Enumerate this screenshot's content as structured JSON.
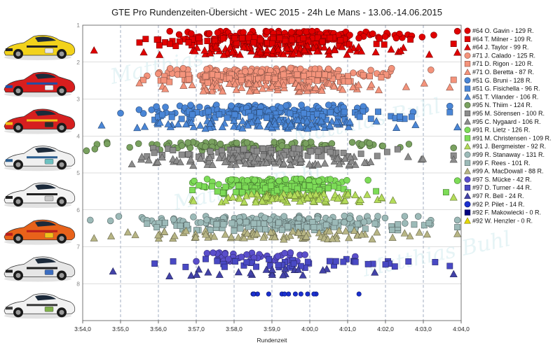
{
  "chart_data": {
    "type": "scatter",
    "title": "GTE  Pro Rundenzeiten-Übersicht - WEC 2015 - 24h Le Mans - 13.06.-14.06.2015",
    "xlabel": "Rundenzeit",
    "ylabel": "",
    "x_ticks": [
      "3:54,0",
      "3:55,0",
      "3:56,0",
      "3:57,0",
      "3:58,0",
      "3:59,0",
      "4:00,0",
      "4:01,0",
      "4:02,0",
      "4:03,0",
      "4:04,0"
    ],
    "xlim_seconds": [
      234,
      244
    ],
    "y_ticks": [
      "1",
      "2",
      "3",
      "4",
      "5",
      "6",
      "7",
      "8"
    ],
    "ylim": [
      1,
      9
    ],
    "grid": true,
    "legend_position": "right",
    "cars": [
      {
        "car": "#64",
        "livery": "yellow-corvette",
        "drivers": [
          {
            "name": "#64 O. Gavin - 129 R.",
            "color": "#e00000",
            "marker": "circle",
            "laps": 129,
            "min": 236.3,
            "max": 243.9,
            "center": 239.4,
            "spread": 1.6
          },
          {
            "name": "#64 T. Milner - 109 R.",
            "color": "#e00000",
            "marker": "square",
            "laps": 109,
            "min": 235.5,
            "max": 243.8,
            "center": 238.9,
            "spread": 1.6
          },
          {
            "name": "#64 J. Taylor - 99 R.",
            "color": "#e00000",
            "marker": "triangle",
            "laps": 99,
            "min": 234.3,
            "max": 243.9,
            "center": 239.2,
            "spread": 1.8
          }
        ]
      },
      {
        "car": "#71",
        "livery": "red-ferrari",
        "drivers": [
          {
            "name": "#71 J. Calado - 125 R.",
            "color": "#f4937b",
            "marker": "circle",
            "laps": 125,
            "min": 235.7,
            "max": 243.2,
            "center": 239.0,
            "spread": 1.4
          },
          {
            "name": "#71 D. Rigon - 120 R.",
            "color": "#f4937b",
            "marker": "square",
            "laps": 120,
            "min": 235.6,
            "max": 243.8,
            "center": 239.0,
            "spread": 1.4
          },
          {
            "name": "#71 O. Beretta - 87 R.",
            "color": "#f4937b",
            "marker": "triangle",
            "laps": 87,
            "min": 235.5,
            "max": 243.7,
            "center": 239.4,
            "spread": 1.5
          }
        ]
      },
      {
        "car": "#51",
        "livery": "red-ferrari-af",
        "drivers": [
          {
            "name": "#51 G. Bruni - 128 R.",
            "color": "#4a86d6",
            "marker": "circle",
            "laps": 128,
            "min": 235.0,
            "max": 243.7,
            "center": 238.7,
            "spread": 1.5
          },
          {
            "name": "#51 G. Fisichella - 96 R.",
            "color": "#4a86d6",
            "marker": "square",
            "laps": 96,
            "min": 235.9,
            "max": 243.7,
            "center": 239.2,
            "spread": 1.5
          },
          {
            "name": "#51 T. Vilander - 106 R.",
            "color": "#4a86d6",
            "marker": "triangle",
            "laps": 106,
            "min": 234.5,
            "max": 243.9,
            "center": 238.9,
            "spread": 1.6
          }
        ]
      },
      {
        "car": "#95",
        "livery": "white-astonmartin",
        "drivers": [
          {
            "name": "#95 N. Thiim - 124 R.",
            "color": "#79a15f",
            "marker": "circle",
            "laps": 124,
            "min": 234.1,
            "max": 243.8,
            "center": 238.6,
            "spread": 1.8
          },
          {
            "name": "#95 M. Sörensen - 100 R.",
            "color": "#8c8c8c",
            "marker": "square",
            "laps": 100,
            "min": 235.7,
            "max": 243.8,
            "center": 238.8,
            "spread": 1.5
          },
          {
            "name": "#95 C. Nygaard - 106 R.",
            "color": "#8c8c8c",
            "marker": "triangle",
            "laps": 106,
            "min": 235.3,
            "max": 243.8,
            "center": 238.8,
            "spread": 1.5
          }
        ]
      },
      {
        "car": "#91",
        "livery": "white-porsche",
        "drivers": [
          {
            "name": "#91 R. Lietz - 126 R.",
            "color": "#7ddc57",
            "marker": "circle",
            "laps": 126,
            "min": 236.9,
            "max": 243.9,
            "center": 239.3,
            "spread": 0.9
          },
          {
            "name": "#91 M. Christensen - 109 R.",
            "color": "#7ddc57",
            "marker": "square",
            "laps": 109,
            "min": 236.9,
            "max": 243.6,
            "center": 239.2,
            "spread": 0.9
          },
          {
            "name": "#91 J. Bergmeister - 92 R.",
            "color": "#b4dc5a",
            "marker": "triangle",
            "laps": 92,
            "min": 236.9,
            "max": 243.8,
            "center": 239.6,
            "spread": 1.2
          }
        ]
      },
      {
        "car": "#99",
        "livery": "orange-astonmartin",
        "drivers": [
          {
            "name": "#99 R. Stanaway - 131 R.",
            "color": "#9cbab8",
            "marker": "circle",
            "laps": 131,
            "min": 234.2,
            "max": 243.9,
            "center": 238.9,
            "spread": 1.9
          },
          {
            "name": "#99 F. Rees - 101 R.",
            "color": "#9cbab8",
            "marker": "square",
            "laps": 101,
            "min": 235.7,
            "max": 243.9,
            "center": 239.3,
            "spread": 1.6
          },
          {
            "name": "#99 A. MacDowall - 88 R.",
            "color": "#b7b584",
            "marker": "triangle",
            "laps": 88,
            "min": 234.3,
            "max": 243.9,
            "center": 239.0,
            "spread": 1.9
          }
        ]
      },
      {
        "car": "#97",
        "livery": "zebra-astonmartin",
        "drivers": [
          {
            "name": "#97 S. Mücke - 42 R.",
            "color": "#5a4ecb",
            "marker": "circle",
            "laps": 42,
            "min": 237.0,
            "max": 241.2,
            "center": 238.6,
            "spread": 0.9
          },
          {
            "name": "#97 D. Turner - 44 R.",
            "color": "#4949c4",
            "marker": "square",
            "laps": 44,
            "min": 235.9,
            "max": 243.7,
            "center": 239.3,
            "spread": 1.5
          },
          {
            "name": "#97 R. Bell - 24 R.",
            "color": "#4242a8",
            "marker": "triangle",
            "laps": 24,
            "min": 234.8,
            "max": 243.8,
            "center": 238.6,
            "spread": 1.8
          }
        ]
      },
      {
        "car": "#92",
        "livery": "white-porsche-92",
        "drivers": [
          {
            "name": "#92 P. Pilet - 14 R.",
            "color": "#1a2fcf",
            "marker": "circle",
            "laps": 14,
            "min": 238.5,
            "max": 241.3,
            "center": 239.4,
            "spread": 0.6
          },
          {
            "name": "#92 F. Makowiecki - 0 R.",
            "color": "#000080",
            "marker": "square",
            "laps": 0,
            "min": 0,
            "max": 0,
            "center": 0,
            "spread": 0
          },
          {
            "name": "#92 W. Henzler - 0 R.",
            "color": "#e5d800",
            "marker": "triangle",
            "laps": 0,
            "min": 0,
            "max": 0,
            "center": 0,
            "spread": 0
          }
        ]
      }
    ]
  },
  "watermark": "Matthias Buhl"
}
